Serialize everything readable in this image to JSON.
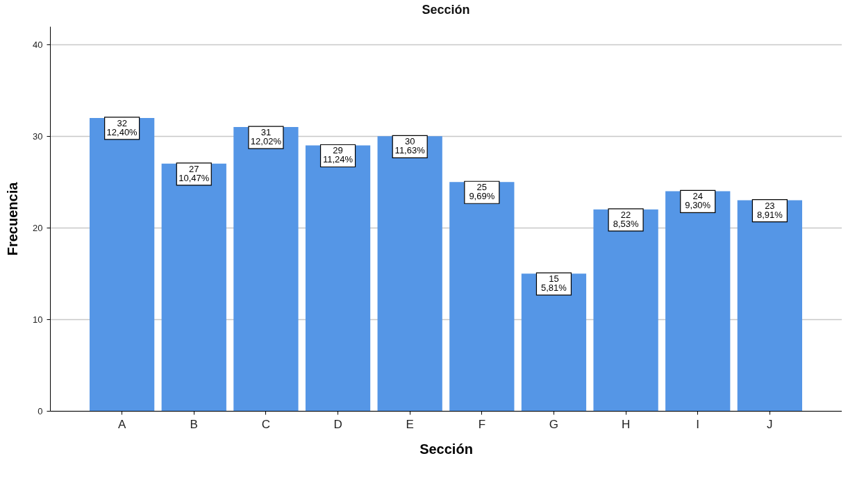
{
  "chart_data": {
    "type": "bar",
    "title": "Sección",
    "xlabel": "Sección",
    "ylabel": "Frecuencia",
    "categories": [
      "A",
      "B",
      "C",
      "D",
      "E",
      "F",
      "G",
      "H",
      "I",
      "J"
    ],
    "values": [
      32,
      27,
      31,
      29,
      30,
      25,
      15,
      22,
      24,
      23
    ],
    "value_labels": [
      "32\n12,40%",
      "27\n10,47%",
      "31\n12,02%",
      "29\n11,24%",
      "30\n11,63%",
      "25\n9,69%",
      "15\n5,81%",
      "22\n8,53%",
      "24\n9,30%",
      "23\n8,91%"
    ],
    "color": "#5596e6",
    "ylim": [
      0,
      42
    ],
    "yticks": [
      0,
      10,
      20,
      30,
      40
    ],
    "grid": "y"
  }
}
